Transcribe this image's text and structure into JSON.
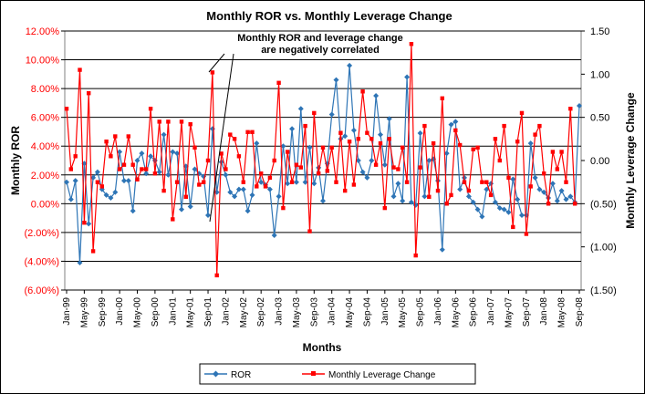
{
  "chart_data": {
    "type": "line",
    "title": "Monthly ROR vs. Monthly Leverage Change",
    "xlabel": "Months",
    "ylabel": "Monthly ROR",
    "y2label": "Monthly Leverage Change",
    "ylim": [
      -6,
      12
    ],
    "y2lim": [
      -1.5,
      1.5
    ],
    "yticks": [
      "(6.00%)",
      "(4.00%)",
      "(2.00%)",
      "0.00%",
      "2.00%",
      "4.00%",
      "6.00%",
      "8.00%",
      "10.00%",
      "12.00%"
    ],
    "y2ticks": [
      "(1.50)",
      "(1.00)",
      "(0.50)",
      "0.00",
      "0.50",
      "1.00",
      "1.50"
    ],
    "xticks": [
      "Jan-99",
      "May-99",
      "Sep-99",
      "Jan-00",
      "May-00",
      "Sep-00",
      "Jan-01",
      "May-01",
      "Sep-01",
      "Jan-02",
      "May-02",
      "Sep-02",
      "Jan-03",
      "May-03",
      "Sep-03",
      "Jan-04",
      "May-04",
      "Sep-04",
      "Jan-05",
      "May-05",
      "Sep-05",
      "Jan-06",
      "May-06",
      "Sep-06",
      "Jan-07",
      "May-07",
      "Sep-07",
      "Jan-08",
      "May-08",
      "Sep-08"
    ],
    "annotation": "Monthly ROR and leverage change\nare negatively correlated",
    "legend_position": "bottom",
    "grid": true,
    "series": [
      {
        "name": "ROR",
        "axis": "left",
        "color": "#2e75b6",
        "marker": "diamond",
        "values": [
          1.5,
          0.3,
          1.6,
          -4.1,
          2.8,
          -1.4,
          1.8,
          2.2,
          1.0,
          0.6,
          0.4,
          0.8,
          3.6,
          1.6,
          1.6,
          -0.5,
          3.0,
          3.5,
          2.1,
          3.3,
          3.0,
          2.2,
          4.8,
          2.0,
          3.6,
          3.5,
          -0.4,
          2.6,
          -0.2,
          2.4,
          2.1,
          1.9,
          -0.8,
          5.2,
          0.8,
          2.9,
          2.0,
          0.8,
          0.5,
          1.0,
          1.0,
          -0.5,
          0.6,
          4.2,
          1.5,
          1.3,
          1.0,
          -2.2,
          0.5,
          4.0,
          1.4,
          5.2,
          1.5,
          6.6,
          1.5,
          3.9,
          1.4,
          2.5,
          0.2,
          2.8,
          6.2,
          8.6,
          4.5,
          4.7,
          9.6,
          5.1,
          3.0,
          2.2,
          1.8,
          3.0,
          7.5,
          4.8,
          2.7,
          5.9,
          0.5,
          1.4,
          0.2,
          8.8,
          0.1,
          -0.1,
          4.9,
          0.5,
          3.0,
          3.1,
          1.6,
          -3.2,
          3.5,
          5.5,
          5.7,
          1.0,
          1.8,
          0.5,
          0.1,
          -0.4,
          -0.9,
          1.0,
          1.4,
          0.1,
          -0.3,
          -0.4,
          -0.6,
          1.7,
          0.3,
          -0.8,
          -0.8,
          4.2,
          1.8,
          1.0,
          0.8,
          0.4,
          1.4,
          0.2,
          0.9,
          0.3,
          0.5,
          0.1,
          6.8
        ]
      },
      {
        "name": "Monthly Leverage Change",
        "axis": "right",
        "color": "#ff0000",
        "marker": "square",
        "values": [
          0.6,
          -0.1,
          0.05,
          1.05,
          -0.72,
          0.78,
          -1.05,
          -0.25,
          -0.3,
          0.22,
          0.05,
          0.28,
          -0.1,
          -0.05,
          0.28,
          -0.05,
          -0.22,
          -0.1,
          -0.1,
          0.6,
          -0.15,
          0.45,
          -0.35,
          0.45,
          -0.68,
          -0.25,
          0.45,
          -0.42,
          0.42,
          0.15,
          -0.28,
          -0.25,
          0.0,
          1.02,
          -1.33,
          0.08,
          -0.1,
          0.3,
          0.25,
          0.05,
          -0.25,
          0.33,
          0.33,
          -0.3,
          -0.15,
          -0.3,
          -0.2,
          0.0,
          0.9,
          -0.55,
          0.1,
          -0.25,
          -0.05,
          -0.08,
          0.4,
          -0.82,
          0.55,
          -0.15,
          0.15,
          -0.12,
          0.15,
          -0.25,
          0.32,
          -0.35,
          0.22,
          -0.28,
          0.25,
          0.8,
          0.32,
          0.25,
          -0.05,
          0.2,
          -0.55,
          0.25,
          -0.08,
          -0.1,
          0.15,
          -0.25,
          1.35,
          -1.1,
          -0.08,
          0.4,
          -0.42,
          0.2,
          -0.35,
          0.72,
          -0.5,
          -0.4,
          0.35,
          0.18,
          -0.25,
          -0.35,
          0.13,
          0.15,
          -0.25,
          -0.25,
          -0.4,
          0.25,
          0.0,
          0.4,
          -0.2,
          -0.77,
          0.22,
          0.55,
          -0.85,
          -0.3,
          0.3,
          0.4,
          -0.15,
          -0.5,
          0.1,
          -0.1,
          0.1,
          -0.25,
          0.6,
          -0.5
        ]
      }
    ]
  }
}
